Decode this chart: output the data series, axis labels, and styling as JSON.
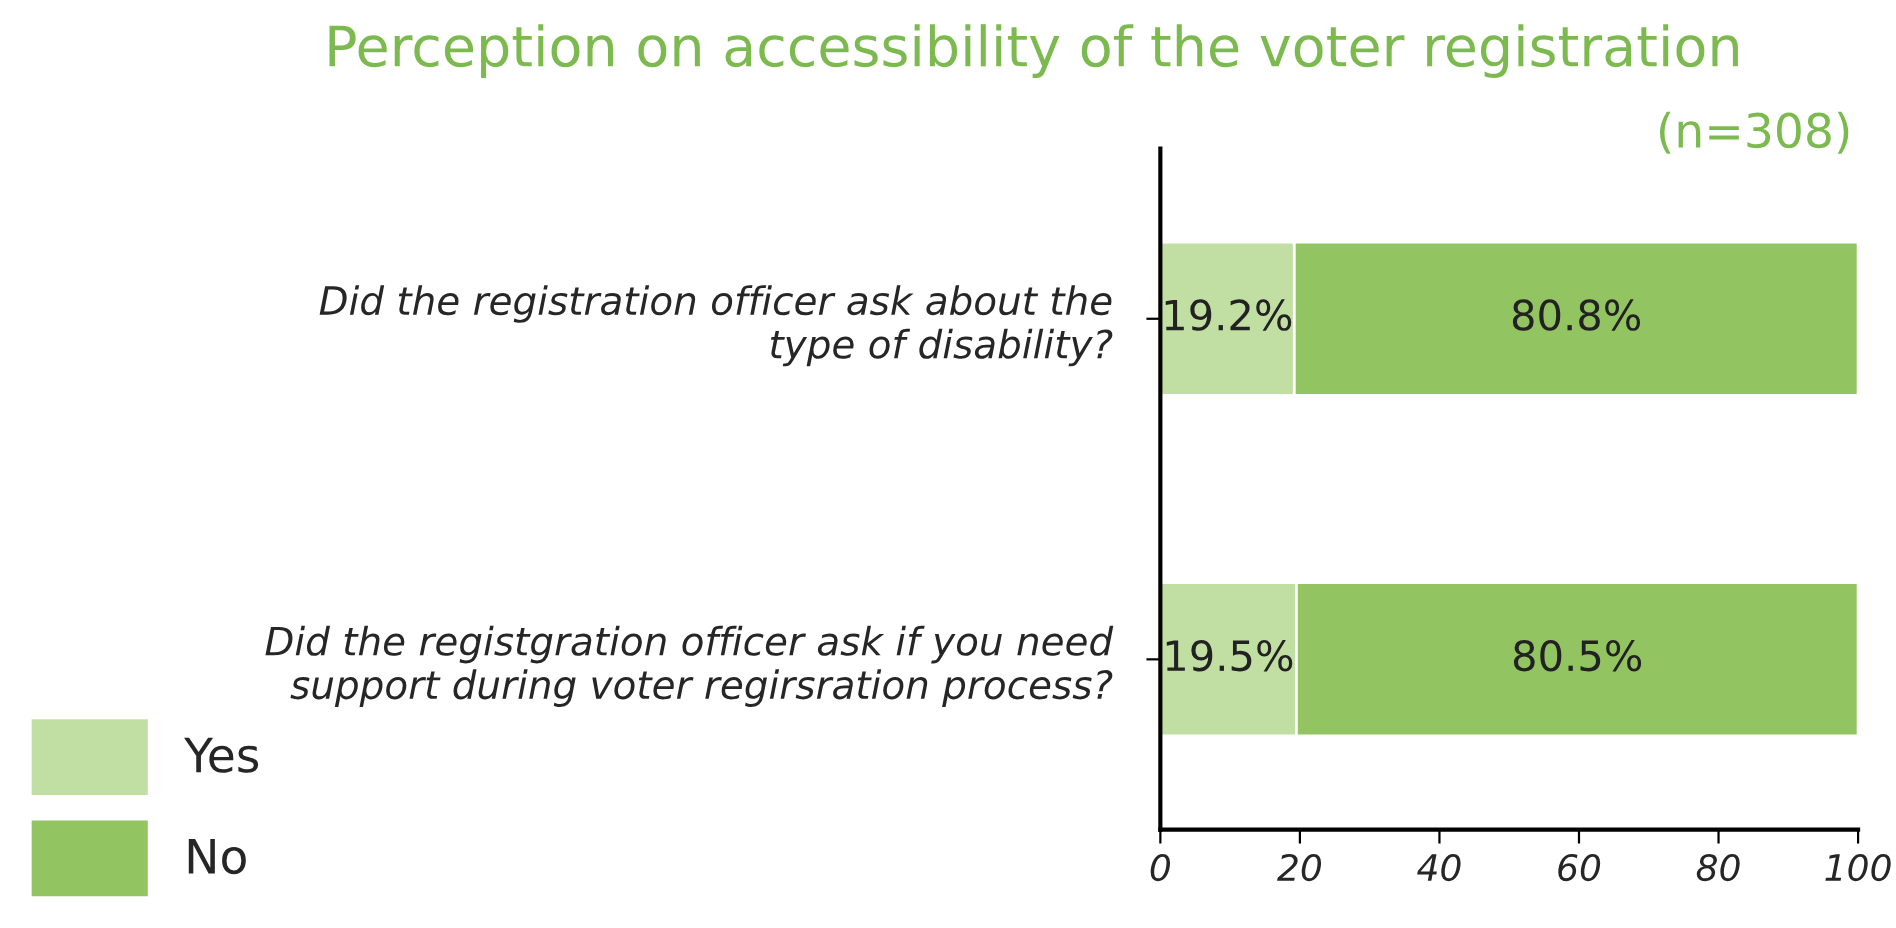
{
  "chart_data": {
    "type": "bar",
    "orientation": "horizontal",
    "stacked": true,
    "title": "Perception on accessibility of the voter registration",
    "subtitle": "(n=308)",
    "categories": [
      "Did the registration officer ask about the\ntype of disability?",
      "Did the registgration officer ask if you need\nsupport during voter regirsration process?"
    ],
    "series": [
      {
        "name": "Yes",
        "color": "#c2dfa3",
        "values": [
          19.2,
          19.5
        ],
        "value_labels": [
          "19.2%",
          "19.5%"
        ]
      },
      {
        "name": "No",
        "color": "#93c462",
        "values": [
          80.8,
          80.5
        ],
        "value_labels": [
          "80.8%",
          "80.5%"
        ]
      }
    ],
    "xlim": [
      0,
      100
    ],
    "xticks": [
      0,
      20,
      40,
      60,
      80,
      100
    ],
    "grid": false,
    "legend": "bottom left"
  }
}
